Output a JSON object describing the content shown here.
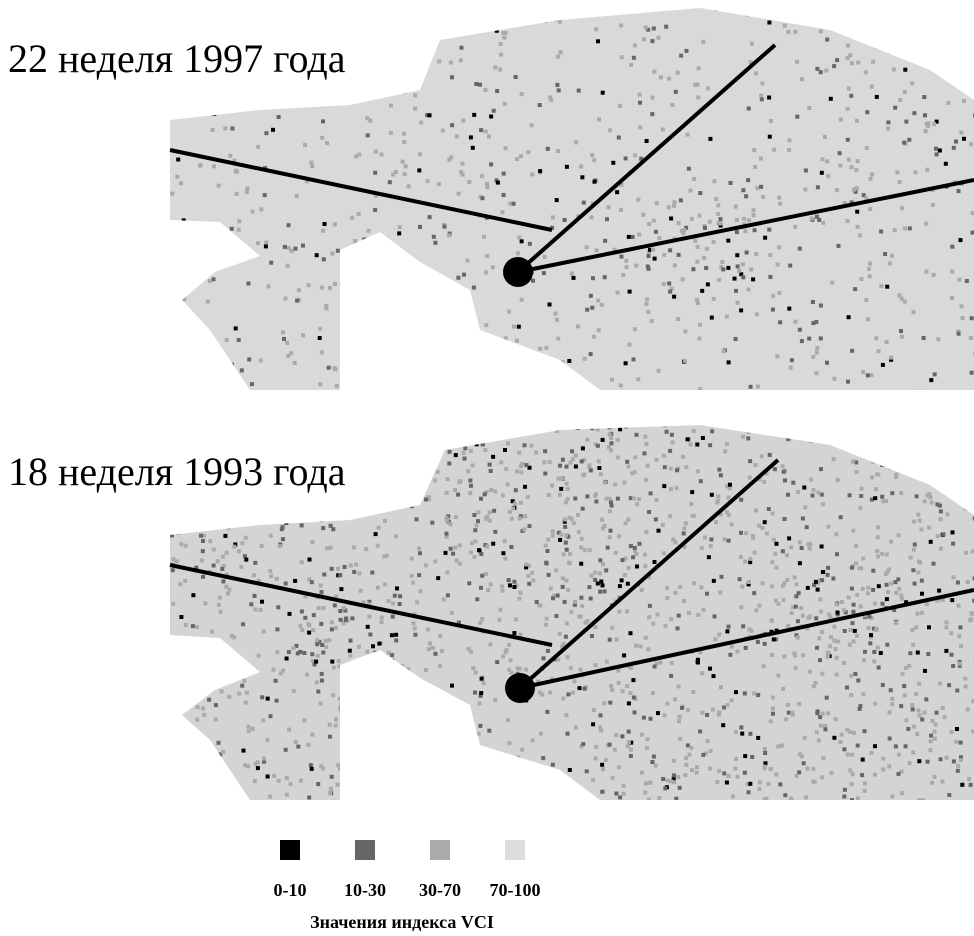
{
  "maps": [
    {
      "title": "22 неделя 1997 года"
    },
    {
      "title": "18 неделя 1993 года"
    }
  ],
  "legend": {
    "title": "Значения индекса VCI",
    "items": [
      {
        "label": "0-10",
        "color": "#000000"
      },
      {
        "label": "10-30",
        "color": "#666666"
      },
      {
        "label": "30-70",
        "color": "#aaaaaa"
      },
      {
        "label": "70-100",
        "color": "#dddddd"
      }
    ]
  }
}
